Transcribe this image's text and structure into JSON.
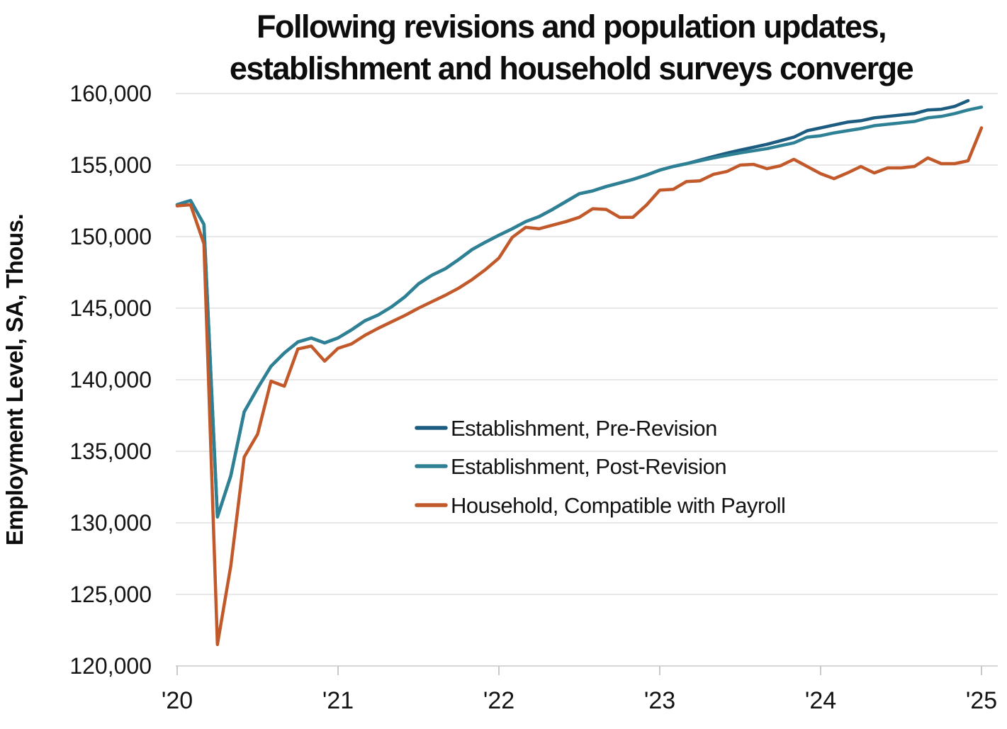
{
  "title": {
    "line1": "Following revisions and population updates,",
    "line2": "establishment and household surveys converge"
  },
  "y_axis": {
    "title": "Employment Level, SA, Thous.",
    "tick_labels": [
      "160,000",
      "155,000",
      "150,000",
      "145,000",
      "140,000",
      "135,000",
      "130,000",
      "125,000",
      "120,000"
    ],
    "tick_values": [
      160000,
      155000,
      150000,
      145000,
      140000,
      135000,
      130000,
      125000,
      120000
    ],
    "min": 120000,
    "max": 160000,
    "grid": true
  },
  "x_axis": {
    "tick_labels": [
      "'20",
      "'21",
      "'22",
      "'23",
      "'24",
      "'25"
    ],
    "start": "2020-01",
    "end": "2025-01",
    "frequency": "monthly"
  },
  "legend": {
    "items": [
      {
        "label": "Establishment, Pre-Revision",
        "color": "#1c5c80"
      },
      {
        "label": "Establishment, Post-Revision",
        "color": "#2e8195"
      },
      {
        "label": "Household, Compatible with Payroll",
        "color": "#c2592a"
      }
    ],
    "position": "inside-right-middle"
  },
  "chart_data": {
    "type": "line",
    "title": "Following revisions and population updates, establishment and household surveys converge",
    "xlabel": "",
    "ylabel": "Employment Level, SA, Thous.",
    "ylim": [
      120000,
      160000
    ],
    "x_start": "2020-01",
    "x_frequency": "monthly",
    "x_tick_labels": [
      "'20",
      "'21",
      "'22",
      "'23",
      "'24",
      "'25"
    ],
    "grid": true,
    "series": [
      {
        "name": "Establishment, Pre-Revision",
        "color": "#1c5c80",
        "start_month": "2020-01",
        "end_month": "2024-12",
        "values": [
          152234,
          152523,
          150852,
          130411,
          133290,
          137756,
          139408,
          140943,
          141875,
          142640,
          142915,
          142574,
          142920,
          143480,
          144120,
          144530,
          145100,
          145800,
          146700,
          147300,
          147750,
          148400,
          149100,
          149620,
          150100,
          150550,
          151050,
          151400,
          151900,
          152450,
          153000,
          153200,
          153500,
          153750,
          154000,
          154300,
          154650,
          154900,
          155100,
          155350,
          155600,
          155830,
          156050,
          156250,
          156450,
          156700,
          156950,
          157400,
          157600,
          157800,
          158000,
          158100,
          158300,
          158400,
          158500,
          158600,
          158850,
          158900,
          159100,
          159500
        ]
      },
      {
        "name": "Establishment, Post-Revision",
        "color": "#2e8195",
        "start_month": "2020-01",
        "end_month": "2025-01",
        "values": [
          152234,
          152523,
          150852,
          130411,
          133290,
          137756,
          139408,
          140943,
          141875,
          142640,
          142915,
          142574,
          142920,
          143480,
          144120,
          144530,
          145100,
          145800,
          146700,
          147300,
          147750,
          148400,
          149100,
          149620,
          150100,
          150550,
          151050,
          151400,
          151900,
          152450,
          153000,
          153200,
          153500,
          153750,
          154000,
          154300,
          154650,
          154900,
          155100,
          155300,
          155500,
          155680,
          155850,
          156000,
          156150,
          156350,
          156550,
          156950,
          157050,
          157250,
          157400,
          157550,
          157750,
          157850,
          157950,
          158050,
          158300,
          158400,
          158600,
          158850,
          159050
        ]
      },
      {
        "name": "Household, Compatible with Payroll",
        "color": "#c2592a",
        "start_month": "2020-01",
        "end_month": "2025-01",
        "values": [
          152150,
          152230,
          149500,
          121500,
          127000,
          134600,
          136200,
          139900,
          139550,
          142150,
          142350,
          141300,
          142200,
          142500,
          143100,
          143600,
          144050,
          144500,
          145000,
          145450,
          145900,
          146400,
          147000,
          147700,
          148500,
          149950,
          150650,
          150550,
          150800,
          151050,
          151350,
          151950,
          151900,
          151350,
          151350,
          152200,
          153250,
          153300,
          153850,
          153900,
          154350,
          154550,
          155000,
          155050,
          154750,
          154950,
          155400,
          154900,
          154400,
          154050,
          154450,
          154900,
          154450,
          154800,
          154800,
          154900,
          155500,
          155100,
          155100,
          155300,
          157600
        ]
      }
    ]
  },
  "style": {
    "grid_color": "#e8e8e8",
    "axis_color": "#d6d6d6",
    "tick_color": "#c9c9c9",
    "background": "#ffffff",
    "line_width": 4.5
  }
}
